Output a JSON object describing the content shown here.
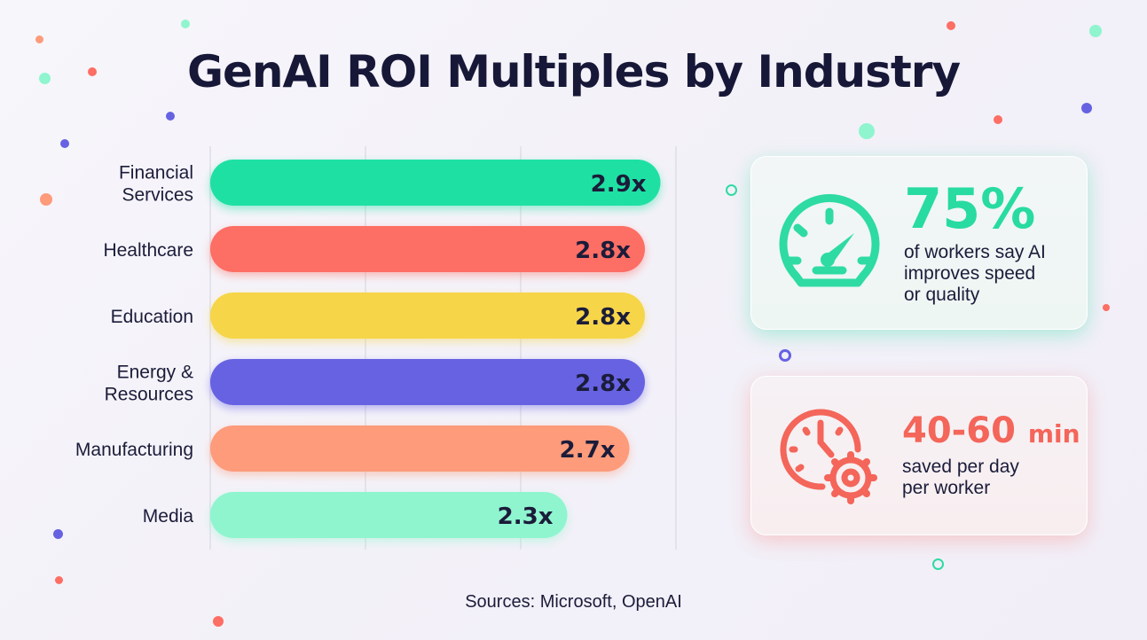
{
  "title": "GenAI ROI Multiples by Industry",
  "chart_data": {
    "type": "bar",
    "orientation": "horizontal",
    "title": "GenAI ROI Multiples by Industry",
    "categories": [
      "Financial Services",
      "Healthcare",
      "Education",
      "Energy & Resources",
      "Manufacturing",
      "Media"
    ],
    "category_lines": [
      [
        "Financial",
        "Services"
      ],
      [
        "Healthcare"
      ],
      [
        "Education"
      ],
      [
        "Energy &",
        "Resources"
      ],
      [
        "Manufacturing"
      ],
      [
        "Media"
      ]
    ],
    "values": [
      2.9,
      2.8,
      2.8,
      2.8,
      2.7,
      2.3
    ],
    "labels": [
      "2.9x",
      "2.8x",
      "2.8x",
      "2.8x",
      "2.7x",
      "2.3x"
    ],
    "colors": [
      "#1fe0a3",
      "#fd6e64",
      "#f6d548",
      "#6662e2",
      "#fd9b7a",
      "#8ff5cf"
    ],
    "xlim": [
      0,
      3
    ],
    "grid": true,
    "xlabel": "",
    "ylabel": ""
  },
  "stats": [
    {
      "value": "75%",
      "text": [
        "of workers say AI",
        "improves speed",
        "or quality"
      ],
      "icon": "speedometer-icon",
      "color": "#28dba0"
    },
    {
      "value": "40-60",
      "unit": "min",
      "text": [
        "saved per day",
        "per worker"
      ],
      "icon": "clock-gear-icon",
      "color": "#f4655a"
    }
  ],
  "source": "Sources: Microsoft, OpenAI"
}
